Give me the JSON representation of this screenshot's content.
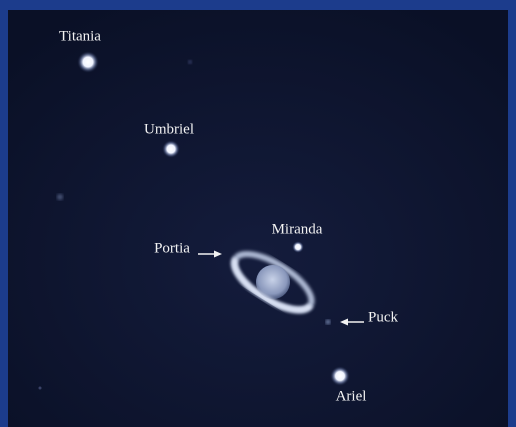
{
  "labels": {
    "titania": "Titania",
    "umbriel": "Umbriel",
    "miranda": "Miranda",
    "portia": "Portia",
    "puck": "Puck",
    "ariel": "Ariel"
  }
}
